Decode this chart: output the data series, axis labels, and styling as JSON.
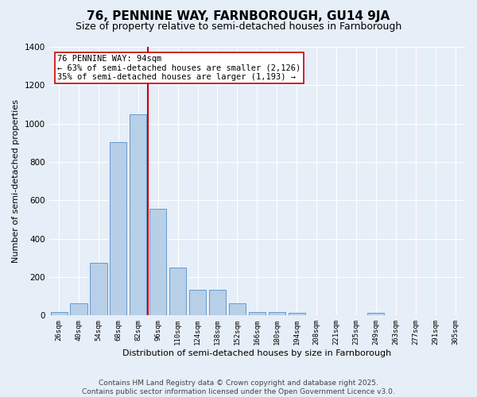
{
  "title": "76, PENNINE WAY, FARNBOROUGH, GU14 9JA",
  "subtitle": "Size of property relative to semi-detached houses in Farnborough",
  "xlabel": "Distribution of semi-detached houses by size in Farnborough",
  "ylabel": "Number of semi-detached properties",
  "bar_labels": [
    "26sqm",
    "40sqm",
    "54sqm",
    "68sqm",
    "82sqm",
    "96sqm",
    "110sqm",
    "124sqm",
    "138sqm",
    "152sqm",
    "166sqm",
    "180sqm",
    "194sqm",
    "208sqm",
    "221sqm",
    "235sqm",
    "249sqm",
    "263sqm",
    "277sqm",
    "291sqm",
    "305sqm"
  ],
  "bar_values": [
    18,
    65,
    275,
    905,
    1050,
    555,
    250,
    135,
    135,
    65,
    20,
    20,
    12,
    0,
    0,
    0,
    12,
    0,
    0,
    0,
    0
  ],
  "bar_color": "#b8cfe8",
  "bar_edge_color": "#6699cc",
  "background_color": "#e6eef8",
  "grid_color": "#ffffff",
  "vline_color": "#cc0000",
  "vline_x_index": 5,
  "annotation_text": "76 PENNINE WAY: 94sqm\n← 63% of semi-detached houses are smaller (2,126)\n35% of semi-detached houses are larger (1,193) →",
  "annotation_box_color": "#ffffff",
  "annotation_box_edge": "#cc0000",
  "ylim": [
    0,
    1400
  ],
  "yticks": [
    0,
    200,
    400,
    600,
    800,
    1000,
    1200,
    1400
  ],
  "footer_text": "Contains HM Land Registry data © Crown copyright and database right 2025.\nContains public sector information licensed under the Open Government Licence v3.0.",
  "title_fontsize": 11,
  "subtitle_fontsize": 9,
  "annotation_fontsize": 7.5,
  "footer_fontsize": 6.5,
  "xlabel_fontsize": 8,
  "ylabel_fontsize": 8
}
